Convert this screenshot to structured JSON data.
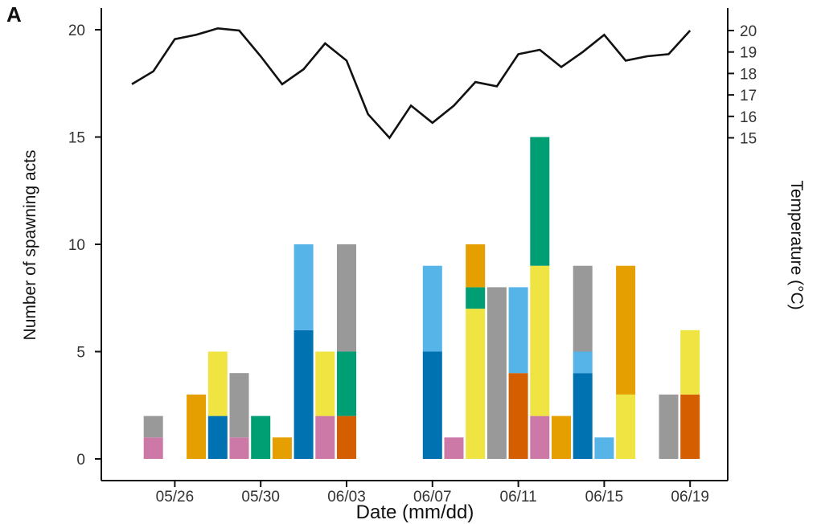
{
  "panel_label": "A",
  "chart_data": {
    "type": "bar",
    "stacked": true,
    "xlabel": "Date (mm/dd)",
    "ylabel": "Number of spawning acts",
    "y2label": "Temperature (°C)",
    "ylim": [
      0,
      20
    ],
    "y2lim": [
      15,
      20
    ],
    "xticks": [
      "05/26",
      "05/30",
      "06/03",
      "06/07",
      "06/11",
      "06/15",
      "06/19"
    ],
    "yticks": [
      "0",
      "5",
      "10",
      "15",
      "20"
    ],
    "y2ticks": [
      "15",
      "16",
      "17",
      "18",
      "19",
      "20"
    ],
    "grid": false,
    "day_range": {
      "first": "05/24",
      "last": "06/19"
    },
    "colors": {
      "grey": "#999999",
      "orange": "#E69F00",
      "skyblue": "#56B4E9",
      "green": "#009E73",
      "yellow": "#F0E442",
      "blue": "#0072B2",
      "vermillion": "#D55E00",
      "pink": "#CC79A7"
    },
    "bars": [
      {
        "date": "05/25",
        "segments": [
          {
            "color": "pink",
            "value": 1
          },
          {
            "color": "grey",
            "value": 1
          }
        ]
      },
      {
        "date": "05/27",
        "segments": [
          {
            "color": "orange",
            "value": 3
          }
        ]
      },
      {
        "date": "05/28",
        "segments": [
          {
            "color": "blue",
            "value": 2
          },
          {
            "color": "yellow",
            "value": 3
          }
        ]
      },
      {
        "date": "05/29",
        "segments": [
          {
            "color": "pink",
            "value": 1
          },
          {
            "color": "grey",
            "value": 3
          }
        ]
      },
      {
        "date": "05/30",
        "segments": [
          {
            "color": "green",
            "value": 2
          }
        ]
      },
      {
        "date": "05/31",
        "segments": [
          {
            "color": "orange",
            "value": 1
          }
        ]
      },
      {
        "date": "06/01",
        "segments": [
          {
            "color": "blue",
            "value": 6
          },
          {
            "color": "skyblue",
            "value": 4
          }
        ]
      },
      {
        "date": "06/02",
        "segments": [
          {
            "color": "pink",
            "value": 2
          },
          {
            "color": "yellow",
            "value": 3
          }
        ]
      },
      {
        "date": "06/03",
        "segments": [
          {
            "color": "vermillion",
            "value": 2
          },
          {
            "color": "green",
            "value": 3
          },
          {
            "color": "grey",
            "value": 5
          }
        ]
      },
      {
        "date": "06/07",
        "segments": [
          {
            "color": "blue",
            "value": 5
          },
          {
            "color": "skyblue",
            "value": 4
          }
        ]
      },
      {
        "date": "06/08",
        "segments": [
          {
            "color": "pink",
            "value": 1
          }
        ]
      },
      {
        "date": "06/09",
        "segments": [
          {
            "color": "yellow",
            "value": 7
          },
          {
            "color": "green",
            "value": 1
          },
          {
            "color": "orange",
            "value": 2
          }
        ]
      },
      {
        "date": "06/10",
        "segments": [
          {
            "color": "grey",
            "value": 8
          }
        ]
      },
      {
        "date": "06/11",
        "segments": [
          {
            "color": "vermillion",
            "value": 4
          },
          {
            "color": "skyblue",
            "value": 4
          }
        ]
      },
      {
        "date": "06/12",
        "segments": [
          {
            "color": "pink",
            "value": 2
          },
          {
            "color": "yellow",
            "value": 7
          },
          {
            "color": "green",
            "value": 6
          }
        ]
      },
      {
        "date": "06/13",
        "segments": [
          {
            "color": "orange",
            "value": 2
          }
        ]
      },
      {
        "date": "06/14",
        "segments": [
          {
            "color": "blue",
            "value": 4
          },
          {
            "color": "skyblue",
            "value": 1
          },
          {
            "color": "grey",
            "value": 4
          }
        ]
      },
      {
        "date": "06/15",
        "segments": [
          {
            "color": "skyblue",
            "value": 1
          }
        ]
      },
      {
        "date": "06/16",
        "segments": [
          {
            "color": "yellow",
            "value": 3
          },
          {
            "color": "orange",
            "value": 6
          }
        ]
      },
      {
        "date": "06/18",
        "segments": [
          {
            "color": "grey",
            "value": 3
          }
        ]
      },
      {
        "date": "06/19",
        "segments": [
          {
            "color": "vermillion",
            "value": 3
          },
          {
            "color": "yellow",
            "value": 3
          }
        ]
      }
    ],
    "temperature_line": [
      {
        "date": "05/24",
        "value": 17.5
      },
      {
        "date": "05/25",
        "value": 18.1
      },
      {
        "date": "05/26",
        "value": 19.6
      },
      {
        "date": "05/27",
        "value": 19.8
      },
      {
        "date": "05/28",
        "value": 20.1
      },
      {
        "date": "05/29",
        "value": 20.0
      },
      {
        "date": "05/30",
        "value": 18.8
      },
      {
        "date": "05/31",
        "value": 17.5
      },
      {
        "date": "06/01",
        "value": 18.2
      },
      {
        "date": "06/02",
        "value": 19.4
      },
      {
        "date": "06/03",
        "value": 18.6
      },
      {
        "date": "06/04",
        "value": 16.1
      },
      {
        "date": "06/05",
        "value": 15.0
      },
      {
        "date": "06/06",
        "value": 16.5
      },
      {
        "date": "06/07",
        "value": 15.7
      },
      {
        "date": "06/08",
        "value": 16.5
      },
      {
        "date": "06/09",
        "value": 17.6
      },
      {
        "date": "06/10",
        "value": 17.4
      },
      {
        "date": "06/11",
        "value": 18.9
      },
      {
        "date": "06/12",
        "value": 19.1
      },
      {
        "date": "06/13",
        "value": 18.3
      },
      {
        "date": "06/14",
        "value": 19.0
      },
      {
        "date": "06/15",
        "value": 19.8
      },
      {
        "date": "06/16",
        "value": 18.6
      },
      {
        "date": "06/17",
        "value": 18.8
      },
      {
        "date": "06/18",
        "value": 18.9
      },
      {
        "date": "06/19",
        "value": 20.0
      }
    ]
  }
}
